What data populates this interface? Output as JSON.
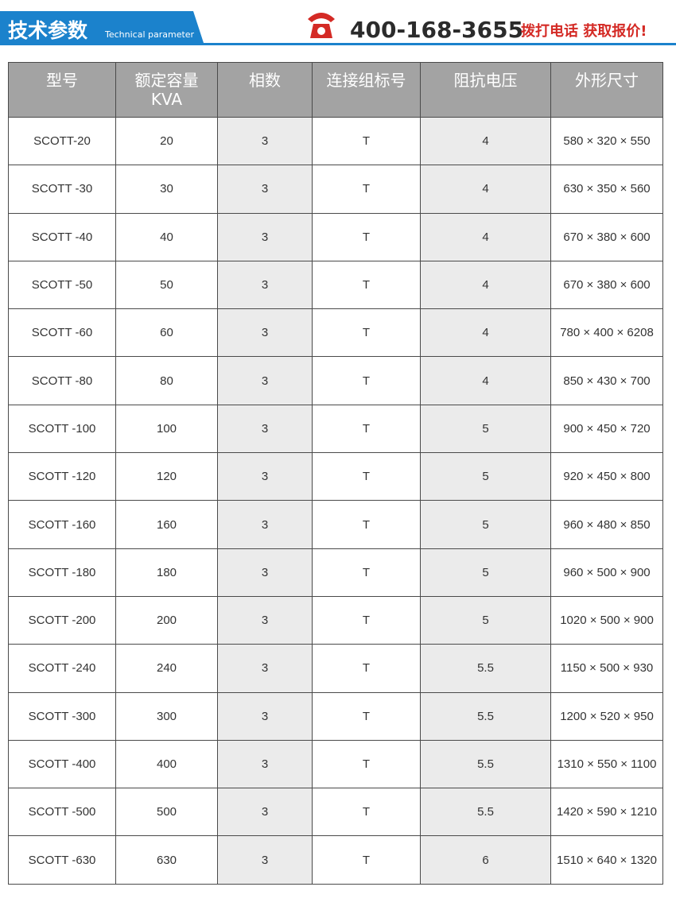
{
  "header": {
    "title": "技术参数",
    "subtitle": "Technical parameter",
    "phone": "400-168-3655",
    "cta": "拨打电话 获取报价!"
  },
  "table": {
    "columns": [
      [
        "型号"
      ],
      [
        "额定容量",
        "KVA"
      ],
      [
        "相数"
      ],
      [
        "连接组标号"
      ],
      [
        "阻抗电压"
      ],
      [
        "外形尺寸"
      ]
    ],
    "rows": [
      [
        "SCOTT-20",
        "20",
        "3",
        "T",
        "4",
        "580 × 320 × 550"
      ],
      [
        "SCOTT -30",
        "30",
        "3",
        "T",
        "4",
        "630 × 350 × 560"
      ],
      [
        "SCOTT -40",
        "40",
        "3",
        "T",
        "4",
        "670 × 380 × 600"
      ],
      [
        "SCOTT -50",
        "50",
        "3",
        "T",
        "4",
        "670 × 380 × 600"
      ],
      [
        "SCOTT -60",
        "60",
        "3",
        "T",
        "4",
        "780 × 400 × 6208"
      ],
      [
        "SCOTT -80",
        "80",
        "3",
        "T",
        "4",
        "850 × 430 × 700"
      ],
      [
        "SCOTT -100",
        "100",
        "3",
        "T",
        "5",
        "900 × 450 × 720"
      ],
      [
        "SCOTT -120",
        "120",
        "3",
        "T",
        "5",
        "920 × 450 × 800"
      ],
      [
        "SCOTT -160",
        "160",
        "3",
        "T",
        "5",
        "960 × 480 × 850"
      ],
      [
        "SCOTT -180",
        "180",
        "3",
        "T",
        "5",
        "960 × 500 × 900"
      ],
      [
        "SCOTT -200",
        "200",
        "3",
        "T",
        "5",
        "1020 × 500 × 900"
      ],
      [
        "SCOTT -240",
        "240",
        "3",
        "T",
        "5.5",
        "1150 × 500 × 930"
      ],
      [
        "SCOTT -300",
        "300",
        "3",
        "T",
        "5.5",
        "1200 × 520 × 950"
      ],
      [
        "SCOTT -400",
        "400",
        "3",
        "T",
        "5.5",
        "1310 × 550 × 1100"
      ],
      [
        "SCOTT -500",
        "500",
        "3",
        "T",
        "5.5",
        "1420 × 590 × 1210"
      ],
      [
        "SCOTT -630",
        "630",
        "3",
        "T",
        "6",
        "1510 × 640 × 1320"
      ]
    ]
  }
}
